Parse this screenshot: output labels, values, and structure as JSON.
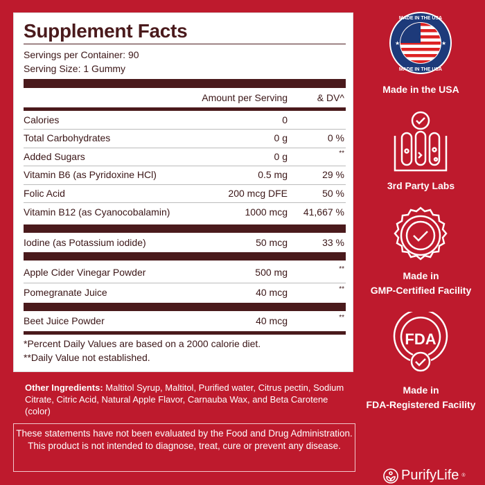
{
  "facts": {
    "title": "Supplement Facts",
    "servings_per_container": "Servings per Container: 90",
    "serving_size": "Serving Size: 1 Gummy",
    "header_amount": "Amount per Serving",
    "header_dv": "& DV^",
    "rows": [
      {
        "name": "Calories",
        "amount": "0",
        "dv": ""
      },
      {
        "name": "Total Carbohydrates",
        "amount": "0 g",
        "dv": "0 %"
      },
      {
        "name": "Added Sugars",
        "amount": "0 g",
        "dv": "**"
      },
      {
        "name": "Vitamin B6 (as Pyridoxine HCl)",
        "amount": "0.5 mg",
        "dv": "29 %"
      },
      {
        "name": "Folic Acid",
        "amount": "200 mcg DFE",
        "dv": "50 %"
      },
      {
        "name": "Vitamin B12 (as Cyanocobalamin)",
        "amount": "1000 mcg",
        "dv": "41,667 %"
      },
      {
        "name": "Iodine (as Potassium iodide)",
        "amount": "50 mcg",
        "dv": "33 %"
      },
      {
        "name": "Apple Cider Vinegar Powder",
        "amount": "500 mg",
        "dv": "**"
      },
      {
        "name": "Pomegranate Juice",
        "amount": "40 mcg",
        "dv": "**"
      },
      {
        "name": "Beet Juice Powder",
        "amount": "40 mcg",
        "dv": "**"
      }
    ],
    "footnote1": "*Percent Daily Values are based on a 2000 calorie diet.",
    "footnote2": "**Daily Value not established."
  },
  "other_ingredients": {
    "label": "Other Ingredients:",
    "text": " Maltitol Syrup, Maltitol, Purified water, Citrus pectin, Sodium Citrate, Citric Acid, Natural Apple Flavor, Carnauba Wax, and Beta Carotene (color)"
  },
  "disclaimer": "These statements have not been evaluated by the Food and Drug Administration. This product is not intended to diagnose, treat, cure or prevent any disease.",
  "badges": [
    {
      "icon": "usa-flag-seal-icon",
      "seal_text": "MADE IN THE USA",
      "label": "Made in the USA"
    },
    {
      "icon": "test-tubes-check-icon",
      "label": "3rd Party Labs"
    },
    {
      "icon": "certified-seal-check-icon",
      "label_line1": "Made in",
      "label_line2": "GMP-Certified Facility"
    },
    {
      "icon": "fda-check-icon",
      "icon_text": "FDA",
      "label_line1": "Made in",
      "label_line2": "FDA-Registered Facility"
    }
  ],
  "brand": {
    "name": "PurifyLife",
    "mark": "®"
  },
  "colors": {
    "background": "#be1a2d",
    "label_dark": "#4a1a1c",
    "panel": "#ffffff"
  }
}
